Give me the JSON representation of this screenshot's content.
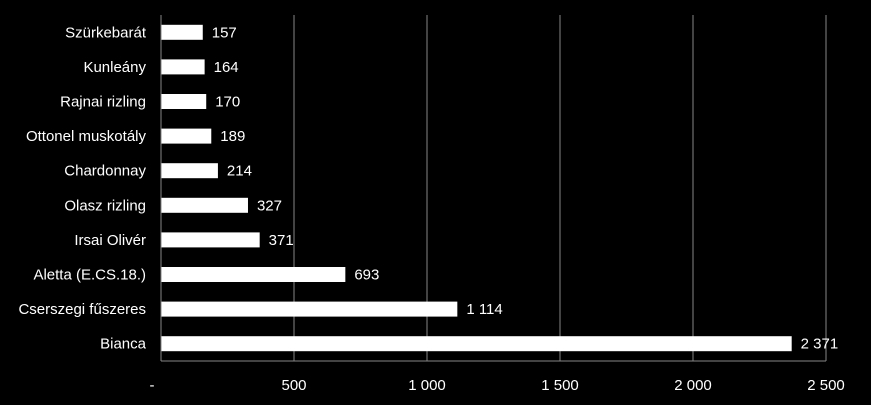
{
  "chart_data": {
    "type": "bar",
    "orientation": "horizontal",
    "categories": [
      "Szürkebarát",
      "Kunleány",
      "Rajnai rizling",
      "Ottonel muskotály",
      "Chardonnay",
      "Olasz rizling",
      "Irsai Olivér",
      "Aletta (E.CS.18.)",
      "Cserszegi fűszeres",
      "Bianca"
    ],
    "values": [
      157,
      164,
      170,
      189,
      214,
      327,
      371,
      693,
      1114,
      2371
    ],
    "value_labels": [
      "157",
      "164",
      "170",
      "189",
      "214",
      "327",
      "371",
      "693",
      "1 114",
      "2 371"
    ],
    "xlim": [
      0,
      2500
    ],
    "x_ticks": [
      0,
      500,
      1000,
      1500,
      2000,
      2500
    ],
    "x_tick_labels": [
      "-",
      "500",
      "1 000",
      "1 500",
      "2 000",
      "2 500"
    ],
    "grid": "vertical",
    "legend": "none",
    "title": "",
    "xlabel": "",
    "ylabel": "",
    "colors": {
      "background": "#000000",
      "bar": "#ffffff",
      "grid": "#868686",
      "text": "#ffffff"
    }
  }
}
